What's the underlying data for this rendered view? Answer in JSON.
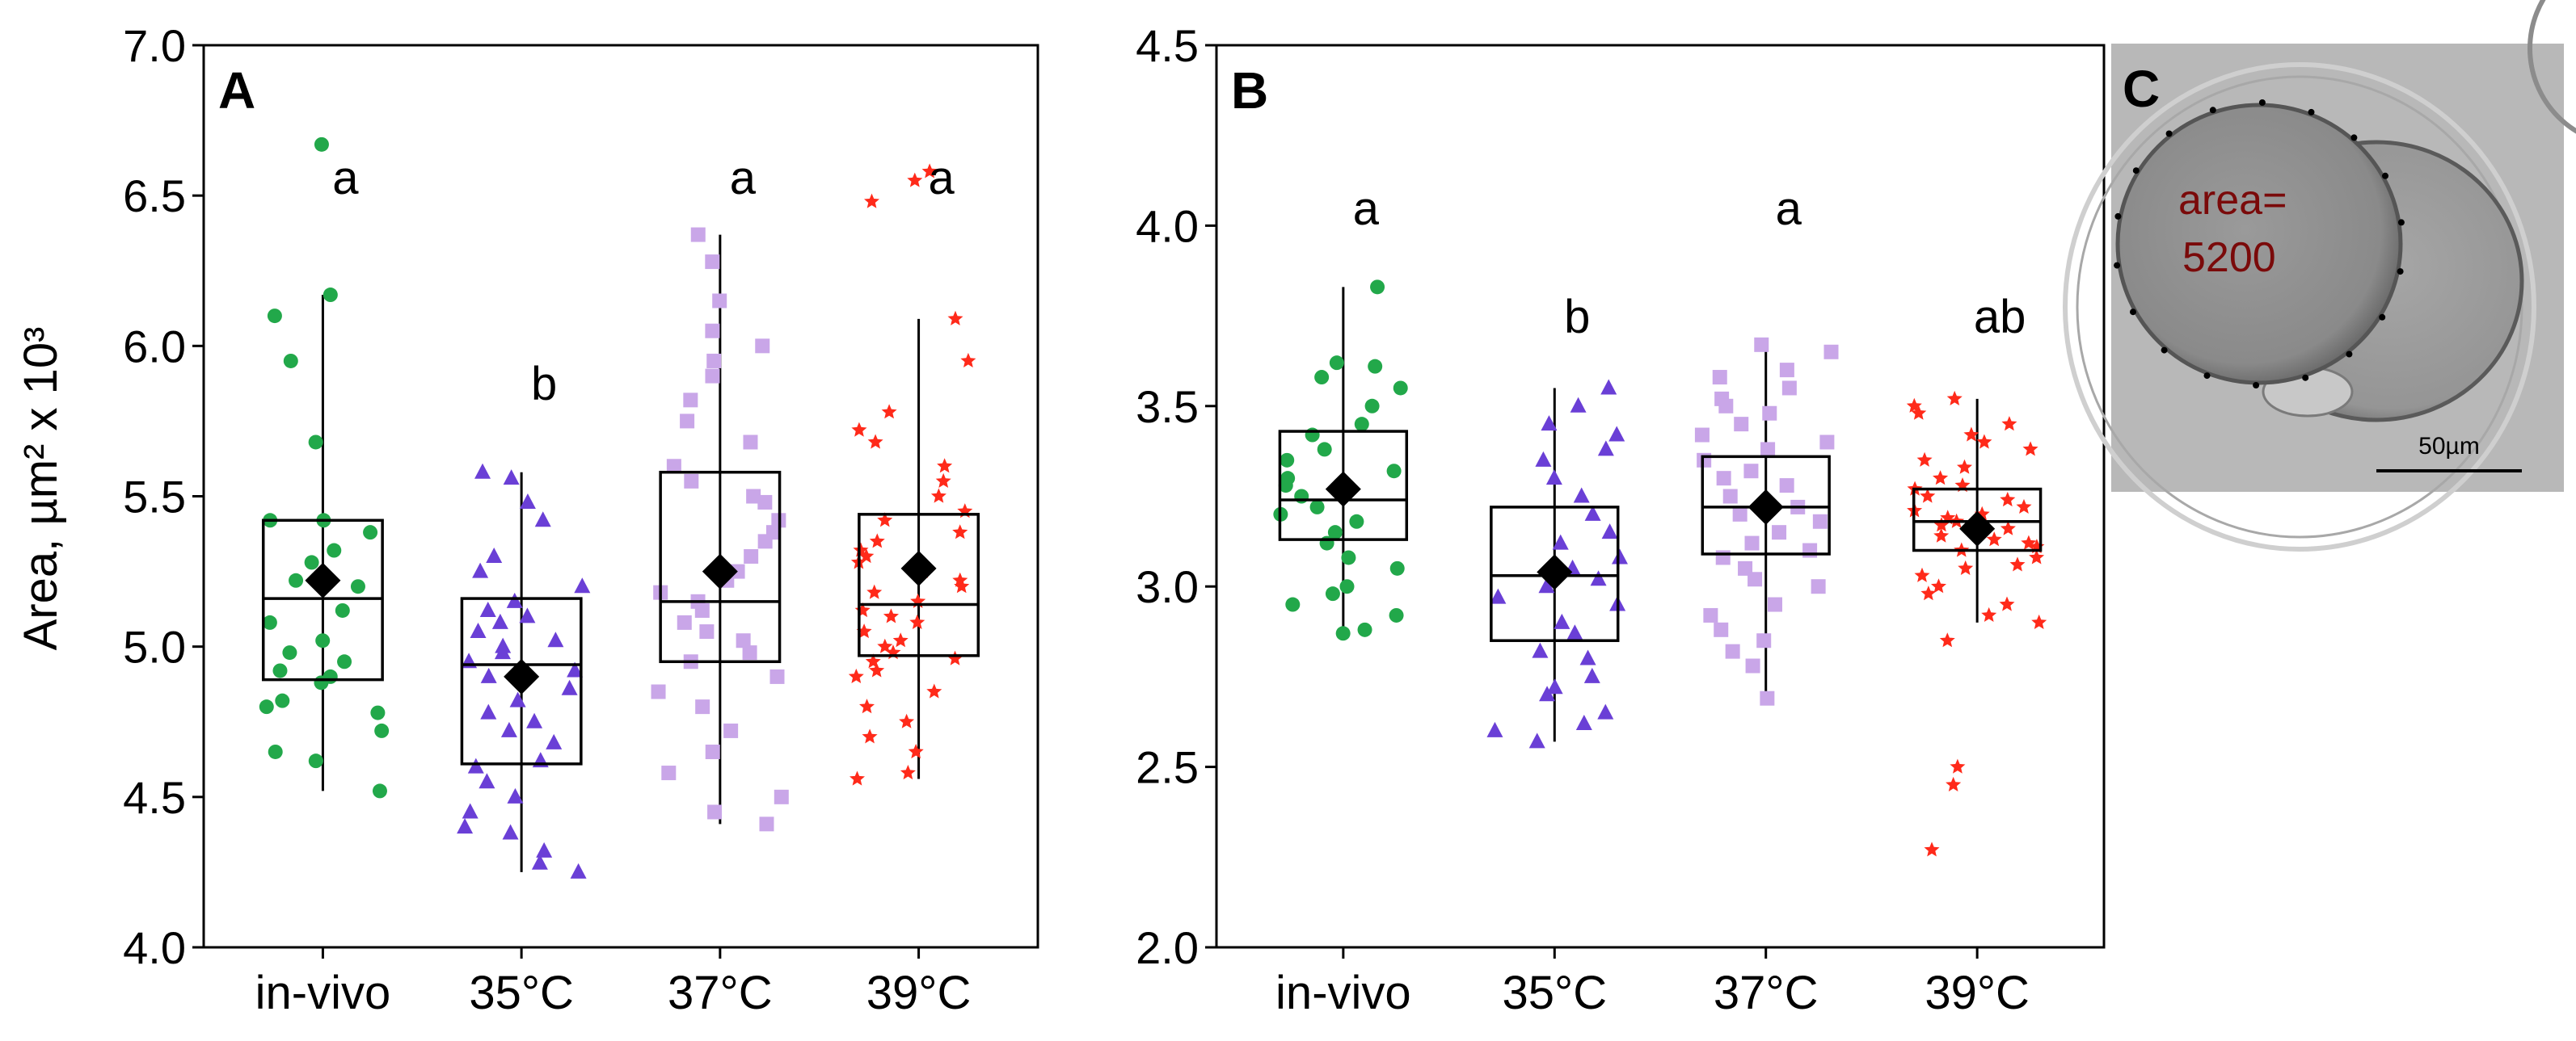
{
  "panel_c": {
    "label": "C",
    "annotation_line1": "area=",
    "annotation_line2": "5200",
    "scale_bar_label": "50µm"
  },
  "colors": {
    "in_vivo": "#22a84a",
    "c35": "#6a3fd6",
    "c37": "#c9a6e8",
    "c39": "#ff2a1a",
    "mean_marker": "#000000",
    "annotation_text": "#7a0a0a"
  },
  "marker_shapes": [
    "circle",
    "triangle",
    "square",
    "star"
  ],
  "chart_data": [
    {
      "type": "box",
      "panel_label": "A",
      "ylabel": "Area, µm² x 10³",
      "xlabel": "",
      "ylim": [
        4.0,
        7.0
      ],
      "yticks": [
        "4.0",
        "4.5",
        "5.0",
        "5.5",
        "6.0",
        "6.5",
        "7.0"
      ],
      "categories": [
        "in-vivo",
        "35°C",
        "37°C",
        "39°C"
      ],
      "series": [
        {
          "category": "in-vivo",
          "whisker_low": 4.52,
          "q1": 4.89,
          "median": 5.16,
          "q3": 5.42,
          "whisker_high": 6.17,
          "mean": 5.22,
          "sig_letter": "a",
          "points": [
            6.67,
            6.17,
            6.1,
            5.95,
            5.68,
            5.42,
            5.42,
            5.38,
            5.32,
            5.28,
            5.22,
            5.2,
            5.12,
            5.08,
            5.02,
            4.98,
            4.95,
            4.92,
            4.9,
            4.88,
            4.82,
            4.8,
            4.78,
            4.72,
            4.65,
            4.62,
            4.52
          ]
        },
        {
          "category": "35°C",
          "whisker_low": 4.25,
          "q1": 4.61,
          "median": 4.94,
          "q3": 5.16,
          "whisker_high": 5.58,
          "mean": 4.9,
          "sig_letter": "b",
          "points": [
            5.58,
            5.56,
            5.48,
            5.42,
            5.3,
            5.25,
            5.2,
            5.15,
            5.12,
            5.1,
            5.08,
            5.05,
            5.02,
            5.0,
            4.98,
            4.95,
            4.92,
            4.9,
            4.86,
            4.82,
            4.78,
            4.75,
            4.72,
            4.68,
            4.62,
            4.6,
            4.55,
            4.5,
            4.45,
            4.4,
            4.38,
            4.32,
            4.28,
            4.25
          ]
        },
        {
          "category": "37°C",
          "whisker_low": 4.41,
          "q1": 4.95,
          "median": 5.15,
          "q3": 5.58,
          "whisker_high": 6.37,
          "mean": 5.25,
          "sig_letter": "a",
          "points": [
            6.37,
            6.28,
            6.15,
            6.05,
            6.0,
            5.95,
            5.9,
            5.82,
            5.75,
            5.68,
            5.6,
            5.55,
            5.5,
            5.48,
            5.42,
            5.38,
            5.35,
            5.3,
            5.25,
            5.22,
            5.18,
            5.15,
            5.12,
            5.08,
            5.05,
            5.02,
            4.98,
            4.95,
            4.9,
            4.85,
            4.8,
            4.72,
            4.65,
            4.58,
            4.5,
            4.45,
            4.41
          ]
        },
        {
          "category": "39°C",
          "whisker_low": 4.56,
          "q1": 4.97,
          "median": 5.14,
          "q3": 5.44,
          "whisker_high": 6.09,
          "mean": 5.26,
          "sig_letter": "a",
          "points": [
            6.58,
            6.55,
            6.48,
            6.09,
            5.95,
            5.78,
            5.72,
            5.68,
            5.6,
            5.55,
            5.5,
            5.45,
            5.42,
            5.38,
            5.35,
            5.32,
            5.3,
            5.28,
            5.25,
            5.22,
            5.2,
            5.18,
            5.15,
            5.12,
            5.1,
            5.08,
            5.05,
            5.02,
            5.0,
            4.98,
            4.96,
            4.95,
            4.92,
            4.9,
            4.85,
            4.8,
            4.75,
            4.7,
            4.65,
            4.58,
            4.56
          ]
        }
      ]
    },
    {
      "type": "box",
      "panel_label": "B",
      "ylabel": "",
      "xlabel": "",
      "ylim": [
        2.0,
        4.5
      ],
      "yticks": [
        "2.0",
        "2.5",
        "3.0",
        "3.5",
        "4.0",
        "4.5"
      ],
      "categories": [
        "in-vivo",
        "35°C",
        "37°C",
        "39°C"
      ],
      "series": [
        {
          "category": "in-vivo",
          "whisker_low": 2.87,
          "q1": 3.13,
          "median": 3.24,
          "q3": 3.43,
          "whisker_high": 3.83,
          "mean": 3.27,
          "sig_letter": "a",
          "points": [
            3.83,
            3.62,
            3.61,
            3.58,
            3.55,
            3.5,
            3.45,
            3.42,
            3.38,
            3.35,
            3.32,
            3.3,
            3.28,
            3.25,
            3.22,
            3.2,
            3.18,
            3.15,
            3.12,
            3.08,
            3.05,
            3.0,
            2.98,
            2.95,
            2.92,
            2.88,
            2.87
          ]
        },
        {
          "category": "35°C",
          "whisker_low": 2.57,
          "q1": 2.85,
          "median": 3.03,
          "q3": 3.22,
          "whisker_high": 3.55,
          "mean": 3.04,
          "sig_letter": "b",
          "points": [
            3.55,
            3.5,
            3.45,
            3.42,
            3.38,
            3.35,
            3.3,
            3.25,
            3.2,
            3.15,
            3.12,
            3.08,
            3.05,
            3.02,
            3.0,
            2.97,
            2.95,
            2.9,
            2.87,
            2.82,
            2.8,
            2.75,
            2.72,
            2.7,
            2.65,
            2.62,
            2.6,
            2.57
          ]
        },
        {
          "category": "37°C",
          "whisker_low": 2.69,
          "q1": 3.09,
          "median": 3.22,
          "q3": 3.36,
          "whisker_high": 3.67,
          "mean": 3.22,
          "sig_letter": "a",
          "points": [
            3.67,
            3.65,
            3.6,
            3.58,
            3.55,
            3.52,
            3.5,
            3.48,
            3.45,
            3.42,
            3.4,
            3.38,
            3.35,
            3.32,
            3.3,
            3.28,
            3.25,
            3.22,
            3.2,
            3.18,
            3.15,
            3.12,
            3.1,
            3.08,
            3.05,
            3.02,
            3.0,
            2.95,
            2.92,
            2.88,
            2.85,
            2.82,
            2.78,
            2.69
          ]
        },
        {
          "category": "39°C",
          "whisker_low": 2.9,
          "q1": 3.1,
          "median": 3.18,
          "q3": 3.27,
          "whisker_high": 3.52,
          "mean": 3.16,
          "sig_letter": "ab",
          "points": [
            3.52,
            3.5,
            3.48,
            3.45,
            3.42,
            3.4,
            3.38,
            3.35,
            3.33,
            3.3,
            3.28,
            3.27,
            3.25,
            3.24,
            3.22,
            3.21,
            3.2,
            3.19,
            3.18,
            3.17,
            3.16,
            3.15,
            3.14,
            3.13,
            3.12,
            3.11,
            3.1,
            3.08,
            3.06,
            3.05,
            3.03,
            3.0,
            2.98,
            2.95,
            2.92,
            2.9,
            2.85,
            2.5,
            2.45,
            2.27
          ]
        }
      ]
    }
  ]
}
